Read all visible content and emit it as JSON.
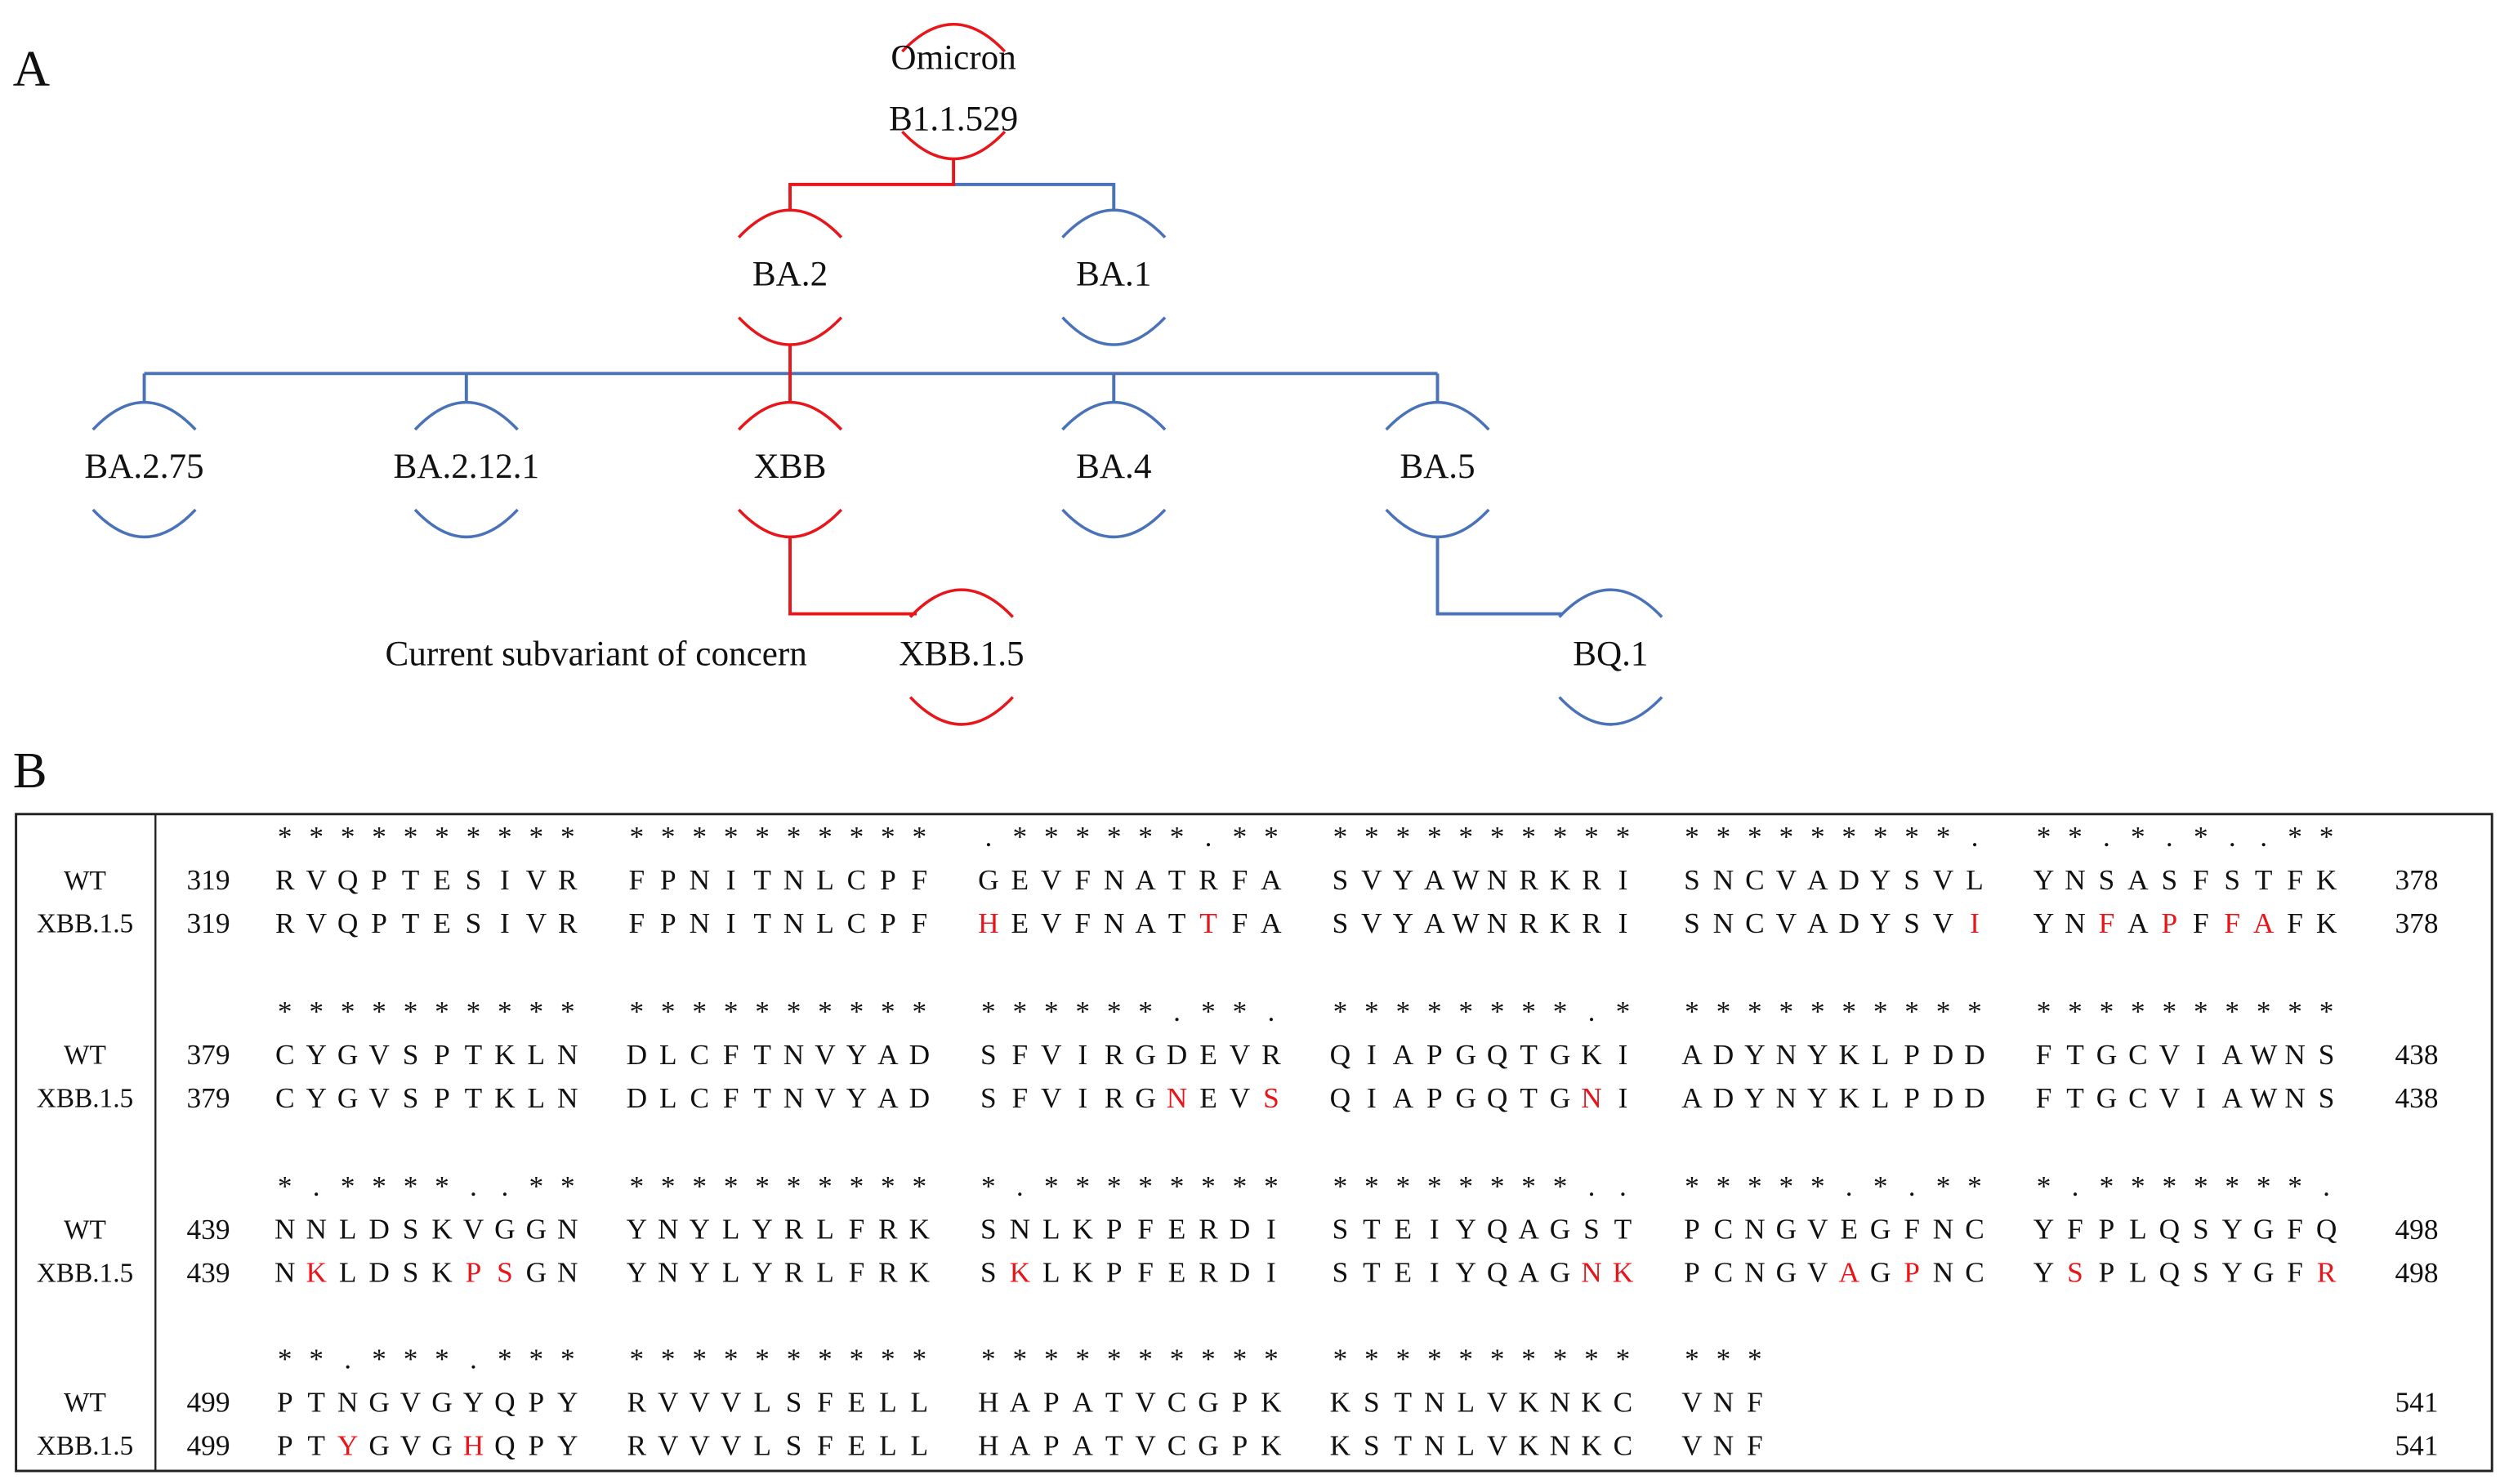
{
  "panel_a": {
    "label": "A",
    "nodes": [
      {
        "lines": [
          "Omicron",
          "B1.1.529"
        ],
        "color": "#e8161b"
      },
      {
        "lines": [
          "BA.2"
        ],
        "color": "#e8161b"
      },
      {
        "lines": [
          "BA.1"
        ],
        "color": "#4a72b8"
      },
      {
        "lines": [
          "BA.2.75"
        ],
        "color": "#4a72b8"
      },
      {
        "lines": [
          "BA.2.12.1"
        ],
        "color": "#4a72b8"
      },
      {
        "lines": [
          "XBB"
        ],
        "color": "#e8161b"
      },
      {
        "lines": [
          "BA.4"
        ],
        "color": "#4a72b8"
      },
      {
        "lines": [
          "BA.5"
        ],
        "color": "#4a72b8"
      },
      {
        "lines": [
          "XBB.1.5"
        ],
        "color": "#e8161b",
        "label_color": "#e8161b"
      },
      {
        "lines": [
          "BQ.1"
        ],
        "color": "#4a72b8"
      }
    ],
    "annotation": "Current subvariant of concern"
  },
  "panel_b": {
    "label": "B",
    "highlight_color": "#e8161b",
    "blocks": [
      {
        "conservation": [
          "**********",
          "**********",
          ".******.**",
          "**********",
          "*********.",
          "**.*.*..**"
        ],
        "rows": [
          {
            "name": "WT",
            "start": 319,
            "end": 378,
            "groups": [
              "RVQPTESIVR",
              "FPNITNLCPF",
              "GEVFNATRFA",
              "SVYAWNRKRI",
              "SNCVADYSVL",
              "YNSASFSTFK"
            ]
          },
          {
            "name": "XBB.1.5",
            "start": 319,
            "end": 378,
            "groups": [
              "RVQPTESIVR",
              "FPNITNLCPF",
              "HEVFNATTFA",
              "SVYAWNRKRI",
              "SNCVADYSVI",
              "YNFAPFFAFK"
            ]
          }
        ]
      },
      {
        "conservation": [
          "**********",
          "**********",
          "******.**.",
          "********.*",
          "**********",
          "**********"
        ],
        "rows": [
          {
            "name": "WT",
            "start": 379,
            "end": 438,
            "groups": [
              "CYGVSPTKLN",
              "DLCFTNVYAD",
              "SFVIRGDEVR",
              "QIAPGQTGKI",
              "ADYNYKLPDD",
              "FTGCVIAWNS"
            ]
          },
          {
            "name": "XBB.1.5",
            "start": 379,
            "end": 438,
            "groups": [
              "CYGVSPTKLN",
              "DLCFTNVYAD",
              "SFVIRGNEVS",
              "QIAPGQTGNI",
              "ADYNYKLPDD",
              "FTGCVIAWNS"
            ]
          }
        ]
      },
      {
        "conservation": [
          "*.****..**",
          "**********",
          "*.********",
          "********..",
          "*****.*.**",
          "*.*******."
        ],
        "rows": [
          {
            "name": "WT",
            "start": 439,
            "end": 498,
            "groups": [
              "NNLDSKVGGN",
              "YNYLYRLFRK",
              "SNLKPFERDI",
              "STEIYQAGST",
              "PCNGVEGFNC",
              "YFPLQSYGFQ"
            ]
          },
          {
            "name": "XBB.1.5",
            "start": 439,
            "end": 498,
            "groups": [
              "NKLDSKPSGN",
              "YNYLYRLFRK",
              "SKLKPFERDI",
              "STEIYQAGNK",
              "PCNGVAGPNC",
              "YSPLQSYGFR"
            ]
          }
        ]
      },
      {
        "conservation": [
          "**.***.***",
          "**********",
          "**********",
          "**********",
          "***"
        ],
        "rows": [
          {
            "name": "WT",
            "start": 499,
            "end": 541,
            "groups": [
              "PTNGVGYQPY",
              "RVVVLSFELL",
              "HAPATVCGPK",
              "KSTNLVKNKC",
              "VNF"
            ]
          },
          {
            "name": "XBB.1.5",
            "start": 499,
            "end": 541,
            "groups": [
              "PTYGVGHQPY",
              "RVVVLSFELL",
              "HAPATVCGPK",
              "KSTNLVKNKC",
              "VNF"
            ]
          }
        ]
      }
    ]
  }
}
